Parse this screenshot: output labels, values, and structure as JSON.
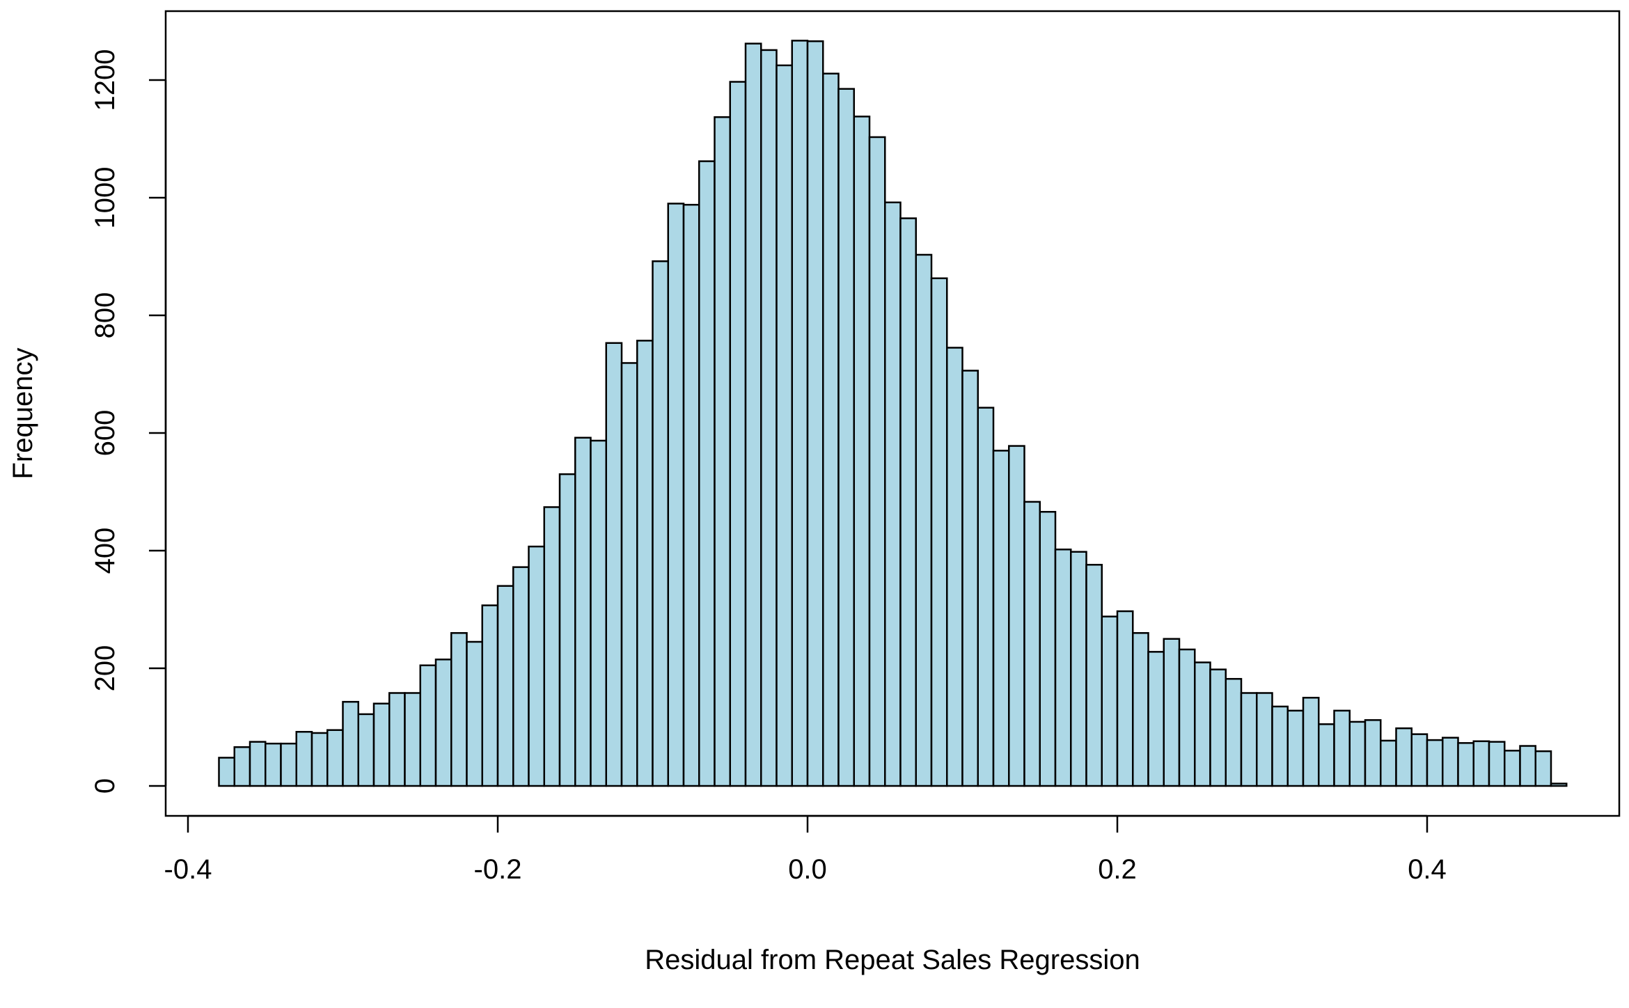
{
  "chart_data": {
    "type": "bar",
    "subtype": "histogram",
    "xlabel": "Residual from Repeat Sales Regression",
    "ylabel": "Frequency",
    "xlim": [
      -0.4,
      0.5
    ],
    "ylim": [
      0,
      1300
    ],
    "x_ticks": [
      -0.4,
      -0.2,
      0.0,
      0.2,
      0.4
    ],
    "x_tick_labels": [
      "-0.4",
      "-0.2",
      "0.0",
      "0.2",
      "0.4"
    ],
    "y_ticks": [
      0,
      200,
      400,
      600,
      800,
      1000,
      1200
    ],
    "y_tick_labels": [
      "0",
      "200",
      "400",
      "600",
      "800",
      "1000",
      "1200"
    ],
    "bin_start": -0.38,
    "bin_width": 0.01,
    "values": [
      48,
      66,
      75,
      72,
      72,
      92,
      90,
      95,
      143,
      122,
      140,
      158,
      158,
      205,
      215,
      260,
      245,
      307,
      340,
      372,
      407,
      474,
      530,
      592,
      587,
      753,
      719,
      757,
      892,
      990,
      988,
      1062,
      1137,
      1197,
      1262,
      1251,
      1225,
      1267,
      1266,
      1211,
      1185,
      1138,
      1103,
      992,
      965,
      903,
      863,
      745,
      706,
      643,
      570,
      578,
      483,
      466,
      402,
      398,
      376,
      288,
      297,
      260,
      228,
      250,
      232,
      210,
      198,
      182,
      158,
      158,
      135,
      128,
      150,
      105,
      128,
      109,
      112,
      77,
      98,
      88,
      78,
      82,
      73,
      76,
      75,
      60,
      68,
      59,
      4
    ],
    "bar_fill": "#add8e6",
    "bar_stroke": "#000000",
    "grid": false,
    "legend": "none"
  }
}
